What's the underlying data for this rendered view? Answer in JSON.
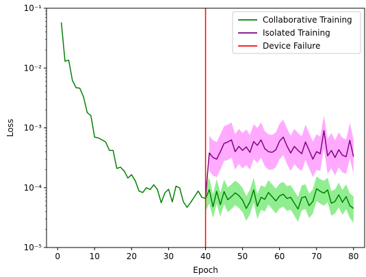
{
  "chart_data": {
    "type": "line",
    "xlabel": "Epoch",
    "ylabel": "Loss",
    "yscale": "log",
    "xlim": [
      -3,
      83
    ],
    "ylim": [
      1e-05,
      0.1
    ],
    "x_ticks": [
      0,
      10,
      20,
      30,
      40,
      50,
      60,
      70,
      80
    ],
    "y_ticks": [
      {
        "value": 1e-05,
        "label": "10⁻⁵"
      },
      {
        "value": 0.0001,
        "label": "10⁻⁴"
      },
      {
        "value": 0.001,
        "label": "10⁻³"
      },
      {
        "value": 0.01,
        "label": "10⁻²"
      },
      {
        "value": 0.1,
        "label": "10⁻¹"
      }
    ],
    "grid": false,
    "legend_position": "top-right",
    "device_failure_epoch": 40,
    "series": [
      {
        "name": "Collaborative Training",
        "color": "#008000",
        "band_color": "#90ee90",
        "x": [
          1,
          2,
          3,
          4,
          5,
          6,
          7,
          8,
          9,
          10,
          11,
          12,
          13,
          14,
          15,
          16,
          17,
          18,
          19,
          20,
          21,
          22,
          23,
          24,
          25,
          26,
          27,
          28,
          29,
          30,
          31,
          32,
          33,
          34,
          35,
          36,
          37,
          38,
          39,
          40,
          41,
          42,
          43,
          44,
          45,
          46,
          47,
          48,
          49,
          50,
          51,
          52,
          53,
          54,
          55,
          56,
          57,
          58,
          59,
          60,
          61,
          62,
          63,
          64,
          65,
          66,
          67,
          68,
          69,
          70,
          71,
          72,
          73,
          74,
          75,
          76,
          77,
          78,
          79,
          80
        ],
        "values": [
          0.058,
          0.013,
          0.0135,
          0.0062,
          0.0047,
          0.0046,
          0.0033,
          0.0018,
          0.0016,
          0.0007,
          0.00068,
          0.00063,
          0.00058,
          0.00042,
          0.00042,
          0.00021,
          0.00022,
          0.00019,
          0.000145,
          0.000165,
          0.00013,
          8.8e-05,
          8.3e-05,
          0.0001,
          9.3e-05,
          0.000112,
          9.3e-05,
          5.6e-05,
          8.2e-05,
          9.4e-05,
          5.8e-05,
          0.000106,
          9.9e-05,
          5.8e-05,
          4.7e-05,
          5.7e-05,
          7.1e-05,
          8.8e-05,
          6.9e-05,
          6.6e-05,
          9.3e-05,
          4.8e-05,
          8.7e-05,
          5.2e-05,
          8.6e-05,
          6.3e-05,
          7.1e-05,
          8.2e-05,
          7.4e-05,
          6.2e-05,
          4.5e-05,
          5.8e-05,
          9.2e-05,
          4.9e-05,
          6.9e-05,
          6.4e-05,
          8.3e-05,
          7.1e-05,
          6e-05,
          7.3e-05,
          7.8e-05,
          6.6e-05,
          6.9e-05,
          5.5e-05,
          4.4e-05,
          6.8e-05,
          7.1e-05,
          5e-05,
          5.9e-05,
          9.6e-05,
          8.7e-05,
          8.1e-05,
          9.2e-05,
          5.5e-05,
          5.9e-05,
          7.6e-05,
          5.7e-05,
          7.1e-05,
          5e-05,
          4.5e-05
        ],
        "band_x": [
          40,
          41,
          42,
          43,
          44,
          45,
          46,
          47,
          48,
          49,
          50,
          51,
          52,
          53,
          54,
          55,
          56,
          57,
          58,
          59,
          60,
          61,
          62,
          63,
          64,
          65,
          66,
          67,
          68,
          69,
          70,
          71,
          72,
          73,
          74,
          75,
          76,
          77,
          78,
          79,
          80
        ],
        "band_lower": [
          4e-05,
          5.5e-05,
          3.1e-05,
          5.4e-05,
          3.3e-05,
          5.3e-05,
          3.9e-05,
          4.4e-05,
          5.1e-05,
          4.6e-05,
          3.9e-05,
          2.8e-05,
          3.6e-05,
          5.7e-05,
          3e-05,
          4.3e-05,
          4e-05,
          5.2e-05,
          4.4e-05,
          3.7e-05,
          4.5e-05,
          4.8e-05,
          4.1e-05,
          4.3e-05,
          3.4e-05,
          2.7e-05,
          4.2e-05,
          4.4e-05,
          3.1e-05,
          3.7e-05,
          6e-05,
          5.4e-05,
          5e-05,
          5.7e-05,
          3.4e-05,
          3.7e-05,
          4.7e-05,
          3.5e-05,
          4.4e-05,
          3.1e-05,
          2.6e-05
        ],
        "band_upper": [
          0.000105,
          0.000148,
          7.7e-05,
          0.000139,
          8.3e-05,
          0.000137,
          0.000101,
          0.000114,
          0.000131,
          0.000118,
          9.9e-05,
          7.2e-05,
          9.3e-05,
          0.000147,
          7.8e-05,
          0.00011,
          0.000102,
          0.000133,
          0.000114,
          9.6e-05,
          0.000117,
          0.000125,
          0.000106,
          0.00011,
          8.8e-05,
          7e-05,
          0.000109,
          0.000114,
          8e-05,
          9.4e-05,
          0.000154,
          0.000139,
          0.00013,
          0.000147,
          8.8e-05,
          9.4e-05,
          0.000122,
          9.1e-05,
          0.000114,
          8e-05,
          7.2e-05
        ]
      },
      {
        "name": "Isolated Training",
        "color": "#800080",
        "band_color": "#ffaaff",
        "x": [
          40,
          41,
          42,
          43,
          44,
          45,
          46,
          47,
          48,
          49,
          50,
          51,
          52,
          53,
          54,
          55,
          56,
          57,
          58,
          59,
          60,
          61,
          62,
          63,
          64,
          65,
          66,
          67,
          68,
          69,
          70,
          71,
          72,
          73,
          74,
          75,
          76,
          77,
          78,
          79,
          80
        ],
        "values": [
          7e-05,
          0.00038,
          0.00032,
          0.0003,
          0.0004,
          0.00055,
          0.00058,
          0.00063,
          0.0004,
          0.00049,
          0.00042,
          0.00048,
          0.00039,
          0.00059,
          0.00051,
          0.00063,
          0.00045,
          0.0004,
          0.00039,
          0.00043,
          0.0006,
          0.0007,
          0.0005,
          0.00038,
          0.00049,
          0.00042,
          0.00037,
          0.00058,
          0.00042,
          0.0003,
          0.0004,
          0.00037,
          0.0009,
          0.00034,
          0.00042,
          0.00032,
          0.00043,
          0.00035,
          0.00033,
          0.00062,
          0.00033
        ],
        "band_x": [
          41,
          42,
          43,
          44,
          45,
          46,
          47,
          48,
          49,
          50,
          51,
          52,
          53,
          54,
          55,
          56,
          57,
          58,
          59,
          60,
          61,
          62,
          63,
          64,
          65,
          66,
          67,
          68,
          69,
          70,
          71,
          72,
          73,
          74,
          75,
          76,
          77,
          78,
          79,
          80
        ],
        "band_lower": [
          0.00019,
          0.00016,
          0.00015,
          0.0002,
          0.00028,
          0.00029,
          0.00032,
          0.0002,
          0.00025,
          0.00021,
          0.00024,
          0.0002,
          0.0003,
          0.00026,
          0.00032,
          0.00023,
          0.0002,
          0.0002,
          0.00022,
          0.0003,
          0.00035,
          0.00025,
          0.00019,
          0.00025,
          0.00021,
          0.00019,
          0.00029,
          0.00021,
          0.00015,
          0.0002,
          0.00019,
          0.00045,
          0.00017,
          0.00021,
          0.00016,
          0.00022,
          0.00018,
          0.00017,
          0.00031,
          0.00017
        ],
        "band_upper": [
          0.00074,
          0.00062,
          0.00058,
          0.00078,
          0.00107,
          0.00113,
          0.00123,
          0.00078,
          0.00096,
          0.00082,
          0.00094,
          0.00076,
          0.00115,
          0.001,
          0.00123,
          0.00088,
          0.00078,
          0.00076,
          0.00084,
          0.00117,
          0.00137,
          0.00098,
          0.00074,
          0.00096,
          0.00082,
          0.00072,
          0.00113,
          0.00082,
          0.00059,
          0.00078,
          0.00072,
          0.0016,
          0.00066,
          0.00082,
          0.00062,
          0.00084,
          0.00068,
          0.00064,
          0.00121,
          0.00064
        ]
      },
      {
        "name": "Device Failure",
        "color": "#ff0000",
        "kind": "vline",
        "x_value": 40
      }
    ]
  }
}
